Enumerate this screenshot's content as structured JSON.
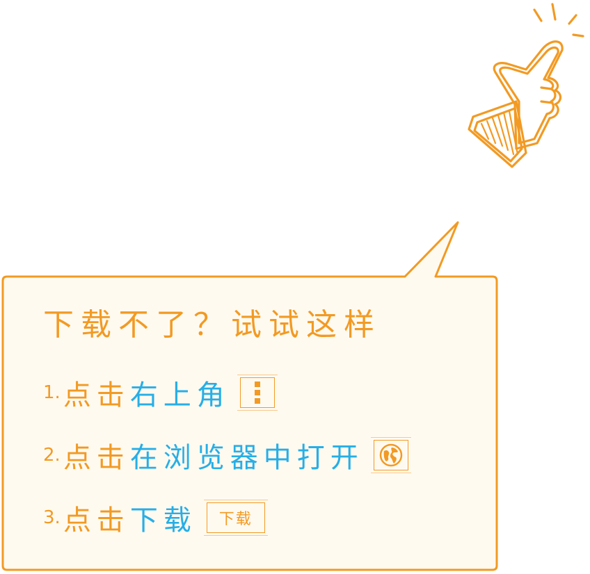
{
  "heading": "下载不了？试试这样",
  "steps": [
    {
      "number": "1.",
      "tap": "点击",
      "action": "右上角",
      "badge_icon": "more-vertical-icon"
    },
    {
      "number": "2.",
      "tap": "点击",
      "action": "在浏览器中打开",
      "badge_icon": "globe-icon"
    },
    {
      "number": "3.",
      "tap": "点击",
      "action": "下载",
      "badge_label": "下载"
    }
  ],
  "colors": {
    "accent_orange": "#f29a23",
    "text_blue": "#27aee6",
    "bubble_fill": "#fffaf0"
  }
}
